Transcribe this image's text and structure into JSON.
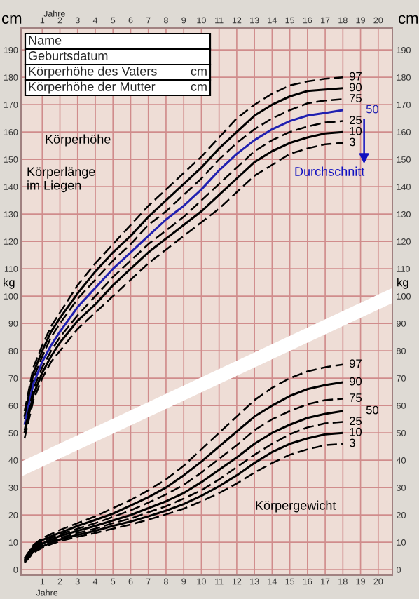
{
  "chart_data": {
    "type": "line",
    "x": [
      0,
      0.5,
      1,
      1.5,
      2,
      3,
      4,
      5,
      6,
      7,
      8,
      9,
      10,
      11,
      12,
      13,
      14,
      15,
      16,
      17,
      18
    ],
    "series": [
      {
        "name": "97",
        "color": "#000000",
        "line_style": "dashed",
        "values": [
          58,
          74,
          82,
          89,
          94,
          104,
          112,
          119,
          126,
          133,
          139,
          145,
          151,
          158,
          165,
          170,
          174,
          177,
          178.5,
          179.5,
          180
        ]
      },
      {
        "name": "90",
        "color": "#000000",
        "line_style": "solid",
        "values": [
          56,
          72,
          80,
          87,
          92,
          101,
          109,
          116,
          122,
          129,
          135,
          141,
          147,
          154,
          160,
          166,
          170,
          173,
          175,
          175.5,
          176
        ]
      },
      {
        "name": "75",
        "color": "#000000",
        "line_style": "dashed",
        "values": [
          55,
          70,
          78,
          85,
          90,
          99,
          106,
          113,
          119,
          126,
          131,
          137,
          143,
          150,
          156,
          161,
          165,
          168,
          170.5,
          171.5,
          172
        ]
      },
      {
        "name": "50",
        "color": "#2020b0",
        "line_style": "solid",
        "values": [
          53,
          68,
          76,
          82,
          87,
          96,
          103,
          110,
          116,
          122,
          128,
          133,
          139,
          146,
          152,
          157,
          161,
          164,
          166,
          167,
          168
        ]
      },
      {
        "name": "25",
        "color": "#000000",
        "line_style": "dashed",
        "values": [
          51,
          66,
          74,
          80,
          85,
          93,
          100,
          107,
          113,
          119,
          124,
          129,
          135,
          141,
          147,
          153,
          157,
          160,
          162,
          163.5,
          164
        ]
      },
      {
        "name": "10",
        "color": "#000000",
        "line_style": "solid",
        "values": [
          50,
          64,
          72,
          78,
          83,
          91,
          97,
          104,
          110,
          116,
          121,
          126,
          131,
          137,
          143,
          149,
          153,
          156,
          158,
          159.5,
          160
        ]
      },
      {
        "name": "3",
        "color": "#000000",
        "line_style": "dashed",
        "values": [
          48,
          62,
          70,
          76,
          80,
          88,
          94,
          100,
          106,
          112,
          117,
          122,
          127,
          132,
          138,
          144,
          148,
          152,
          154,
          155.5,
          156
        ]
      },
      {
        "name": "97",
        "color": "#000000",
        "line_style": "dashed",
        "values": [
          4.2,
          9,
          11.5,
          13,
          14.5,
          17,
          19.5,
          22.5,
          25.5,
          29,
          33,
          38,
          44,
          50,
          56,
          62,
          66.5,
          70,
          72.5,
          74,
          75
        ]
      },
      {
        "name": "90",
        "color": "#000000",
        "line_style": "solid",
        "values": [
          3.9,
          8.5,
          10.8,
          12.2,
          13.5,
          16,
          18.2,
          20.5,
          23.5,
          26.5,
          30,
          34.5,
          39.5,
          45,
          50.5,
          56,
          60,
          63.5,
          66,
          67.5,
          68.5
        ]
      },
      {
        "name": "75",
        "color": "#000000",
        "line_style": "dashed",
        "values": [
          3.6,
          8,
          10.1,
          11.6,
          12.9,
          15,
          17,
          19.3,
          21.7,
          24.5,
          27.5,
          31,
          35.5,
          40.5,
          45.5,
          51,
          55,
          58,
          60.5,
          62,
          62.5
        ]
      },
      {
        "name": "50",
        "color": "#000000",
        "line_style": "solid",
        "values": [
          3.3,
          7.5,
          9.5,
          11,
          12.3,
          14.2,
          16,
          18,
          20,
          22.5,
          25,
          28,
          32,
          36.5,
          41,
          46,
          50,
          53,
          55.5,
          57,
          58
        ]
      },
      {
        "name": "25",
        "color": "#000000",
        "line_style": "dashed",
        "values": [
          3,
          7,
          9,
          10.4,
          11.6,
          13.4,
          15,
          17,
          18.7,
          21,
          23.2,
          26,
          29,
          33,
          37.5,
          42,
          46,
          49.5,
          52,
          53.5,
          54
        ]
      },
      {
        "name": "10",
        "color": "#000000",
        "line_style": "solid",
        "values": [
          2.8,
          6.6,
          8.5,
          9.9,
          11,
          12.7,
          14.2,
          16,
          17.6,
          19.5,
          21.6,
          24,
          27,
          30.5,
          34.5,
          39,
          43,
          46,
          48,
          49.5,
          50
        ]
      },
      {
        "name": "3",
        "color": "#000000",
        "line_style": "dashed",
        "values": [
          2.5,
          6.2,
          8,
          9.3,
          10.4,
          12,
          13.4,
          15,
          16.5,
          18.3,
          20.2,
          22.3,
          25,
          28,
          31.5,
          35.5,
          39,
          42,
          44,
          45.5,
          46
        ]
      }
    ],
    "xlim": [
      -0.2,
      20.8
    ],
    "xticks": [
      1,
      2,
      3,
      4,
      5,
      6,
      7,
      8,
      9,
      10,
      11,
      12,
      13,
      14,
      15,
      16,
      17,
      18,
      19,
      20
    ],
    "x2lim": [
      -0.2,
      20.8
    ],
    "x2ticks": [
      1,
      2,
      3,
      4,
      5,
      6,
      7,
      8,
      9,
      10,
      11,
      12,
      13,
      14,
      15,
      16,
      17,
      18,
      19,
      20
    ],
    "xlabel": "Jahre",
    "x2label": "Jahre",
    "ylim": [
      -2,
      198
    ],
    "yticks": [
      0,
      10,
      20,
      30,
      40,
      50,
      60,
      70,
      80,
      90,
      100,
      110,
      120,
      130,
      140,
      150,
      160,
      170,
      180,
      190
    ],
    "y2lim": [
      -2,
      198
    ],
    "y2ticks": [
      0,
      10,
      20,
      30,
      40,
      50,
      60,
      70,
      80,
      90,
      100,
      110,
      120,
      130,
      140,
      150,
      160,
      170,
      180,
      190
    ],
    "annotations": [
      "cm",
      "cm",
      "kg",
      "kg",
      "Körperhöhe",
      "Körperlänge\nim Liegen",
      "Durchschnitt",
      "Körpergewicht",
      "Name",
      "Geburtsdatum",
      "Körperhöhe des Vaters",
      "cm",
      "Körperhöhe der Mutter",
      "cm"
    ],
    "grid": true,
    "legend": false,
    "marker": "none"
  }
}
